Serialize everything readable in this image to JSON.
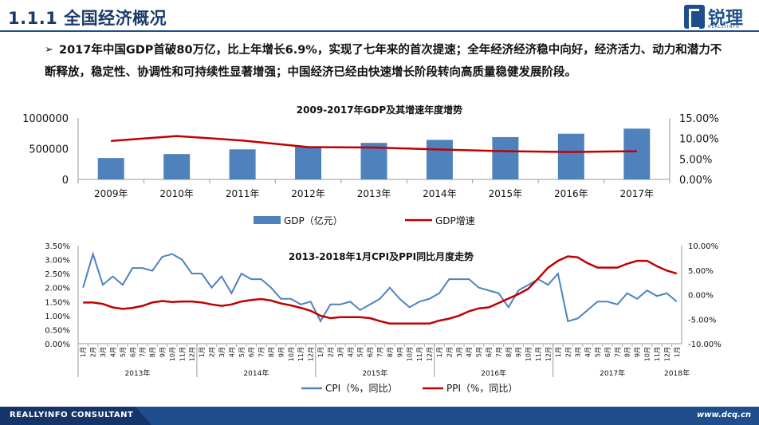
{
  "header": {
    "title": "1.1.1 全国经济概况"
  },
  "logo": {
    "name": "锐理",
    "sub": "REALLYINFO"
  },
  "bullet": {
    "arrow": "➢",
    "text": "2017年中国GDP首破80万亿，比上年增长6.9%，实现了七年来的首次提速；全年经济经济稳中向好，经济活力、动力和潜力不断释放，稳定性、协调性和可持续性显著增强；中国经济已经由快速增长阶段转向高质量稳健发展阶段。"
  },
  "footer": {
    "brand": "REALLYINFO CONSULTANT",
    "url": "www.dcq.cn"
  },
  "colors": {
    "bar": "#4f81bd",
    "red": "#c00000",
    "blue_line": "#4f81bd",
    "navy": "#1f4e8c"
  },
  "chart_data": [
    {
      "type": "bar",
      "title": "2009-2017年GDP及其增速年度增势",
      "categories": [
        "2009年",
        "2010年",
        "2011年",
        "2012年",
        "2013年",
        "2014年",
        "2015年",
        "2016年",
        "2017年"
      ],
      "series": [
        {
          "name": "GDP（亿元）",
          "type": "bar",
          "axis": "left",
          "values": [
            349081,
            413030,
            489301,
            540367,
            595244,
            643974,
            689052,
            744127,
            827122
          ]
        },
        {
          "name": "GDP增速",
          "type": "line",
          "axis": "right",
          "values": [
            9.4,
            10.6,
            9.5,
            7.9,
            7.8,
            7.3,
            6.9,
            6.7,
            6.9
          ]
        }
      ],
      "y_left": {
        "ticks": [
          "1000000",
          "500000",
          "0"
        ],
        "tick_values": [
          1000000,
          500000,
          0
        ],
        "range": [
          0,
          1000000
        ]
      },
      "y_right": {
        "ticks": [
          "15.00%",
          "10.00%",
          "5.00%",
          "0.00%"
        ],
        "tick_values": [
          15,
          10,
          5,
          0
        ],
        "range": [
          0,
          15
        ]
      },
      "legend": [
        "GDP（亿元）",
        "GDP增速"
      ],
      "legend_position": "bottom"
    },
    {
      "type": "line",
      "title": "2013-2018年1月CPI及PPI同比月度走势",
      "month_labels": [
        "1月",
        "2月",
        "3月",
        "4月",
        "5月",
        "6月",
        "7月",
        "8月",
        "9月",
        "10月",
        "11月",
        "12月"
      ],
      "last_month_label": "1月",
      "year_labels": [
        "2013年",
        "2014年",
        "2015年",
        "2016年",
        "2017年",
        "2018年"
      ],
      "series": [
        {
          "name": "CPI（%，同比）",
          "axis": "left",
          "values": [
            2.0,
            3.2,
            2.1,
            2.4,
            2.1,
            2.7,
            2.7,
            2.6,
            3.1,
            3.2,
            3.0,
            2.5,
            2.5,
            2.0,
            2.4,
            1.8,
            2.5,
            2.3,
            2.3,
            2.0,
            1.6,
            1.6,
            1.4,
            1.5,
            0.8,
            1.4,
            1.4,
            1.5,
            1.2,
            1.4,
            1.6,
            2.0,
            1.6,
            1.3,
            1.5,
            1.6,
            1.8,
            2.3,
            2.3,
            2.3,
            2.0,
            1.9,
            1.8,
            1.3,
            1.9,
            2.1,
            2.3,
            2.1,
            2.5,
            0.8,
            0.9,
            1.2,
            1.5,
            1.5,
            1.4,
            1.8,
            1.6,
            1.9,
            1.7,
            1.8,
            1.5
          ]
        },
        {
          "name": "PPI（%，同比）",
          "axis": "right",
          "values": [
            -1.6,
            -1.6,
            -1.9,
            -2.6,
            -2.9,
            -2.7,
            -2.3,
            -1.6,
            -1.3,
            -1.5,
            -1.4,
            -1.4,
            -1.6,
            -2.0,
            -2.3,
            -2.0,
            -1.4,
            -1.1,
            -0.9,
            -1.2,
            -1.8,
            -2.2,
            -2.7,
            -3.3,
            -4.3,
            -4.8,
            -4.6,
            -4.6,
            -4.6,
            -4.8,
            -5.4,
            -5.9,
            -5.9,
            -5.9,
            -5.9,
            -5.9,
            -5.3,
            -4.9,
            -4.3,
            -3.4,
            -2.8,
            -2.6,
            -1.7,
            -0.8,
            0.1,
            1.2,
            3.3,
            5.5,
            6.9,
            7.8,
            7.6,
            6.4,
            5.5,
            5.5,
            5.5,
            6.3,
            6.9,
            6.9,
            5.8,
            4.9,
            4.3
          ]
        }
      ],
      "y_left": {
        "ticks": [
          "3.50%",
          "3.00%",
          "2.50%",
          "2.00%",
          "1.50%",
          "1.00%",
          "0.50%",
          "0.00%"
        ],
        "tick_values": [
          3.5,
          3.0,
          2.5,
          2.0,
          1.5,
          1.0,
          0.5,
          0
        ],
        "range": [
          0,
          3.5
        ]
      },
      "y_right": {
        "ticks": [
          "10.00%",
          "5.00%",
          "0.00%",
          "-5.00%",
          "-10.00%"
        ],
        "tick_values": [
          10,
          5,
          0,
          -5,
          -10
        ],
        "range": [
          -10,
          10
        ]
      },
      "legend": [
        "CPI（%，同比）",
        "PPI（%，同比）"
      ],
      "legend_position": "bottom"
    }
  ]
}
